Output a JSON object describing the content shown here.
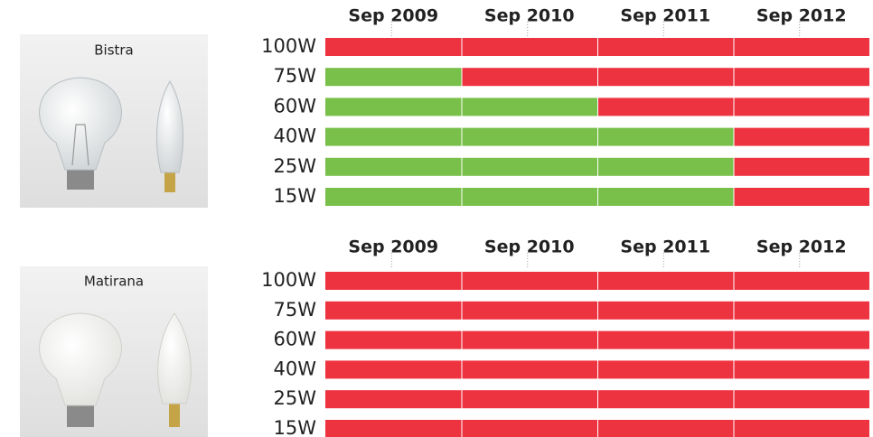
{
  "panels": [
    {
      "label": "Bistra",
      "columns": [
        "Sep 2009",
        "Sep 2010",
        "Sep 2011",
        "Sep 2012"
      ],
      "rows": [
        {
          "label": "100W",
          "cells": [
            "#ee3340",
            "#ee3340",
            "#ee3340",
            "#ee3340"
          ]
        },
        {
          "label": "75W",
          "cells": [
            "#78c04a",
            "#ee3340",
            "#ee3340",
            "#ee3340"
          ]
        },
        {
          "label": "60W",
          "cells": [
            "#78c04a",
            "#78c04a",
            "#ee3340",
            "#ee3340"
          ]
        },
        {
          "label": "40W",
          "cells": [
            "#78c04a",
            "#78c04a",
            "#78c04a",
            "#ee3340"
          ]
        },
        {
          "label": "25W",
          "cells": [
            "#78c04a",
            "#78c04a",
            "#78c04a",
            "#ee3340"
          ]
        },
        {
          "label": "15W",
          "cells": [
            "#78c04a",
            "#78c04a",
            "#78c04a",
            "#ee3340"
          ]
        }
      ]
    },
    {
      "label": "Matirana",
      "columns": [
        "Sep 2009",
        "Sep 2010",
        "Sep 2011",
        "Sep 2012"
      ],
      "rows": [
        {
          "label": "100W",
          "cells": [
            "#ee3340",
            "#ee3340",
            "#ee3340",
            "#ee3340"
          ]
        },
        {
          "label": "75W",
          "cells": [
            "#ee3340",
            "#ee3340",
            "#ee3340",
            "#ee3340"
          ]
        },
        {
          "label": "60W",
          "cells": [
            "#ee3340",
            "#ee3340",
            "#ee3340",
            "#ee3340"
          ]
        },
        {
          "label": "40W",
          "cells": [
            "#ee3340",
            "#ee3340",
            "#ee3340",
            "#ee3340"
          ]
        },
        {
          "label": "25W",
          "cells": [
            "#ee3340",
            "#ee3340",
            "#ee3340",
            "#ee3340"
          ]
        },
        {
          "label": "15W",
          "cells": [
            "#ee3340",
            "#ee3340",
            "#ee3340",
            "#ee3340"
          ]
        }
      ]
    }
  ]
}
